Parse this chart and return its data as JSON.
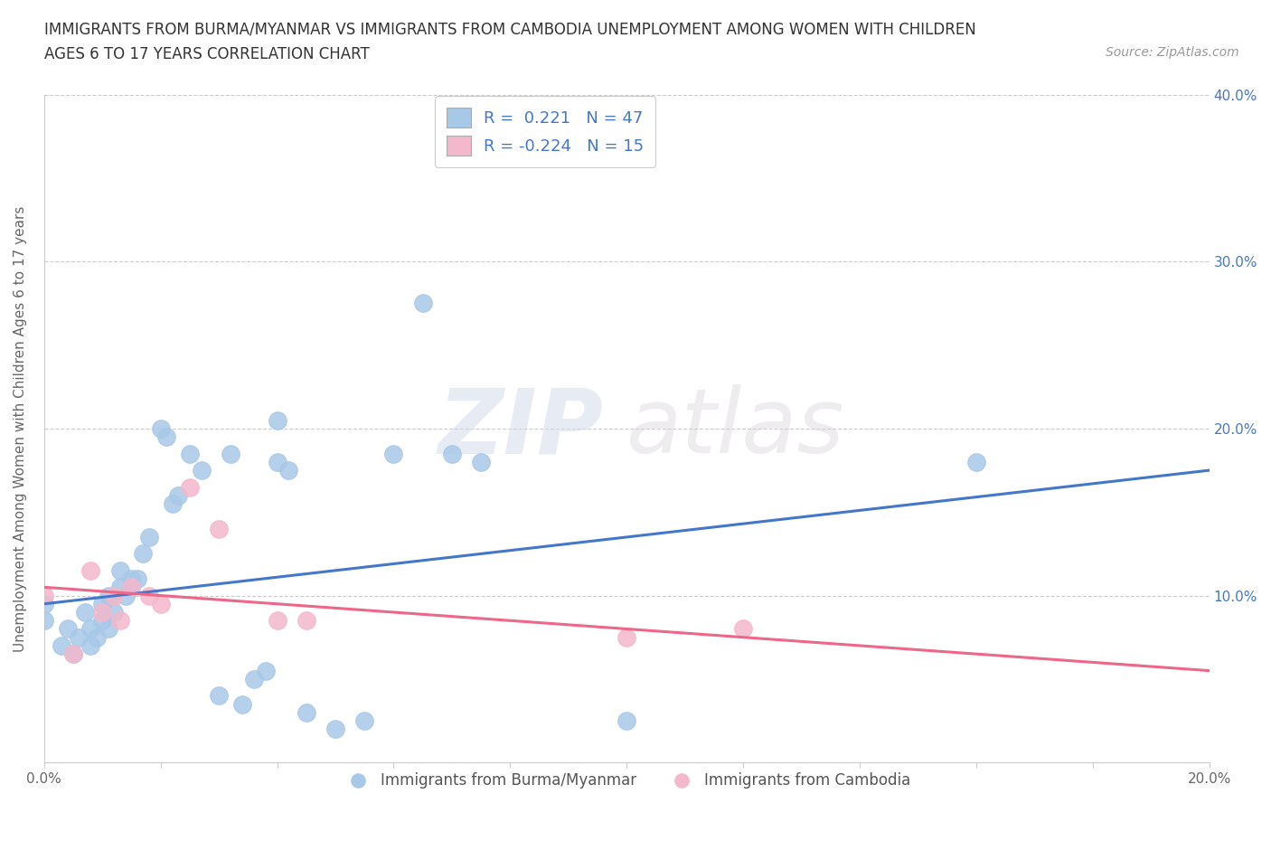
{
  "title_line1": "IMMIGRANTS FROM BURMA/MYANMAR VS IMMIGRANTS FROM CAMBODIA UNEMPLOYMENT AMONG WOMEN WITH CHILDREN",
  "title_line2": "AGES 6 TO 17 YEARS CORRELATION CHART",
  "source_text": "Source: ZipAtlas.com",
  "ylabel": "Unemployment Among Women with Children Ages 6 to 17 years",
  "xlim": [
    0.0,
    0.2
  ],
  "ylim": [
    0.0,
    0.4
  ],
  "xticks": [
    0.0,
    0.02,
    0.04,
    0.06,
    0.08,
    0.1,
    0.12,
    0.14,
    0.16,
    0.18,
    0.2
  ],
  "yticks": [
    0.0,
    0.1,
    0.2,
    0.3,
    0.4
  ],
  "xtick_labels": [
    "0.0%",
    "",
    "",
    "",
    "",
    "",
    "",
    "",
    "",
    "",
    "20.0%"
  ],
  "ytick_labels_left": [
    "",
    "",
    "",
    "",
    ""
  ],
  "ytick_labels_right": [
    "",
    "10.0%",
    "20.0%",
    "30.0%",
    "40.0%"
  ],
  "grid_color": "#cccccc",
  "background_color": "#ffffff",
  "plot_background": "#ffffff",
  "blue_color": "#a8c8e8",
  "pink_color": "#f4b8cc",
  "blue_line_color": "#4477cc",
  "pink_line_color": "#ee6688",
  "R_blue": 0.221,
  "N_blue": 47,
  "R_pink": -0.224,
  "N_pink": 15,
  "legend_label_blue": "Immigrants from Burma/Myanmar",
  "legend_label_pink": "Immigrants from Cambodia",
  "watermark_zip": "ZIP",
  "watermark_atlas": "atlas",
  "blue_scatter_x": [
    0.0,
    0.0,
    0.003,
    0.004,
    0.005,
    0.006,
    0.007,
    0.008,
    0.008,
    0.009,
    0.01,
    0.01,
    0.011,
    0.011,
    0.012,
    0.012,
    0.013,
    0.013,
    0.014,
    0.015,
    0.015,
    0.016,
    0.017,
    0.018,
    0.02,
    0.021,
    0.022,
    0.023,
    0.025,
    0.027,
    0.03,
    0.032,
    0.034,
    0.036,
    0.038,
    0.04,
    0.04,
    0.042,
    0.045,
    0.05,
    0.055,
    0.06,
    0.065,
    0.07,
    0.075,
    0.1,
    0.16
  ],
  "blue_scatter_y": [
    0.085,
    0.095,
    0.07,
    0.08,
    0.065,
    0.075,
    0.09,
    0.08,
    0.07,
    0.075,
    0.085,
    0.095,
    0.1,
    0.08,
    0.09,
    0.1,
    0.105,
    0.115,
    0.1,
    0.11,
    0.105,
    0.11,
    0.125,
    0.135,
    0.2,
    0.195,
    0.155,
    0.16,
    0.185,
    0.175,
    0.04,
    0.185,
    0.035,
    0.05,
    0.055,
    0.205,
    0.18,
    0.175,
    0.03,
    0.02,
    0.025,
    0.185,
    0.275,
    0.185,
    0.18,
    0.025,
    0.18
  ],
  "pink_scatter_x": [
    0.0,
    0.005,
    0.008,
    0.01,
    0.012,
    0.013,
    0.015,
    0.018,
    0.02,
    0.025,
    0.03,
    0.04,
    0.045,
    0.1,
    0.12
  ],
  "pink_scatter_y": [
    0.1,
    0.065,
    0.115,
    0.09,
    0.1,
    0.085,
    0.105,
    0.1,
    0.095,
    0.165,
    0.14,
    0.085,
    0.085,
    0.075,
    0.08
  ],
  "blue_trend_x": [
    0.0,
    0.2
  ],
  "blue_trend_y": [
    0.095,
    0.175
  ],
  "pink_trend_x": [
    0.0,
    0.2
  ],
  "pink_trend_y": [
    0.105,
    0.055
  ]
}
